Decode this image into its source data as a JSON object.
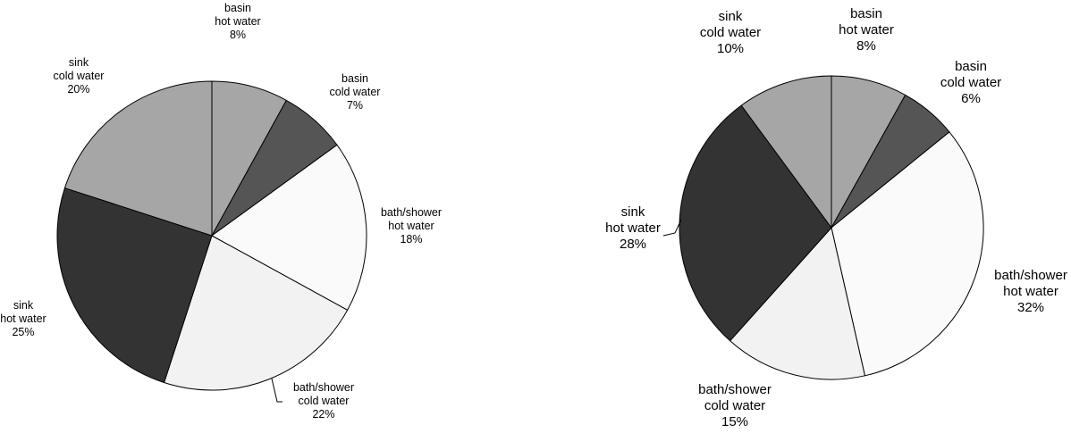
{
  "chart_data": [
    {
      "type": "pie",
      "slices": [
        {
          "label": [
            "basin",
            "hot water"
          ],
          "value": 8,
          "value_label": "8%",
          "color": "#a6a6a6"
        },
        {
          "label": [
            "basin",
            "cold water"
          ],
          "value": 7,
          "value_label": "7%",
          "color": "#555555"
        },
        {
          "label": [
            "bath/shower",
            "hot water"
          ],
          "value": 18,
          "value_label": "18%",
          "color": "#fafafa"
        },
        {
          "label": [
            "bath/shower",
            "cold water"
          ],
          "value": 22,
          "value_label": "22%",
          "color": "#f2f2f2"
        },
        {
          "label": [
            "sink",
            "hot water"
          ],
          "value": 25,
          "value_label": "25%",
          "color": "#333333"
        },
        {
          "label": [
            "sink",
            "cold water"
          ],
          "value": 20,
          "value_label": "20%",
          "color": "#a6a6a6"
        }
      ]
    },
    {
      "type": "pie",
      "slices": [
        {
          "label": [
            "basin",
            "hot water"
          ],
          "value": 8,
          "value_label": "8%",
          "color": "#a6a6a6"
        },
        {
          "label": [
            "basin",
            "cold water"
          ],
          "value": 6,
          "value_label": "6%",
          "color": "#555555"
        },
        {
          "label": [
            "bath/shower",
            "hot water"
          ],
          "value": 32,
          "value_label": "32%",
          "color": "#fafafa"
        },
        {
          "label": [
            "bath/shower",
            "cold water"
          ],
          "value": 15,
          "value_label": "15%",
          "color": "#f2f2f2"
        },
        {
          "label": [
            "sink",
            "hot water"
          ],
          "value": 28,
          "value_label": "28%",
          "color": "#333333"
        },
        {
          "label": [
            "sink",
            "cold water"
          ],
          "value": 10,
          "value_label": "10%",
          "color": "#a6a6a6"
        }
      ]
    }
  ]
}
